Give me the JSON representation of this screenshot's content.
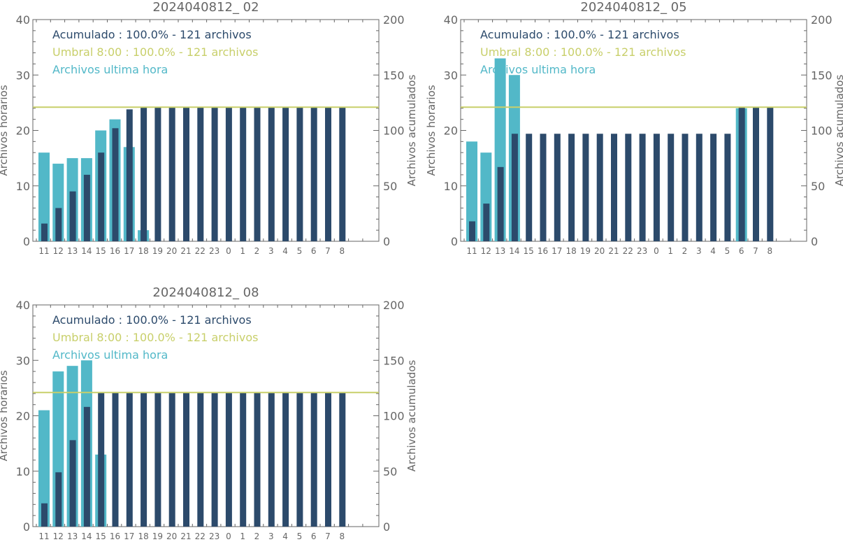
{
  "colors": {
    "hourly": "#52b8c8",
    "cumulative": "#2c4a6b",
    "threshold": "#c8cf6a",
    "axis": "#666666",
    "text": "#666666"
  },
  "chart_data": [
    {
      "type": "bar",
      "title": "2024040812_ 02",
      "ylabel": "Archivos horarios",
      "ylabel_right": "Archivos acumulados",
      "ylim": [
        0,
        40
      ],
      "ylim_right": [
        0,
        200
      ],
      "yticks": [
        "0",
        "10",
        "20",
        "30",
        "40"
      ],
      "yticks_right": [
        "0",
        "50",
        "100",
        "150",
        "200"
      ],
      "categories": [
        "11",
        "12",
        "13",
        "14",
        "15",
        "16",
        "17",
        "18",
        "19",
        "20",
        "21",
        "22",
        "23",
        "0",
        "1",
        "2",
        "3",
        "4",
        "5",
        "6",
        "7",
        "8"
      ],
      "legend": [
        "Acumulado : 100.0% - 121 archivos",
        "Umbral 8:00 : 100.0% - 121 archivos",
        "Archivos ultima hora"
      ],
      "threshold_right": 121,
      "series": [
        {
          "name": "Archivos ultima hora",
          "values": [
            16,
            14,
            15,
            15,
            20,
            22,
            17,
            2,
            0,
            0,
            0,
            0,
            0,
            0,
            0,
            0,
            0,
            0,
            0,
            0,
            0,
            0
          ]
        },
        {
          "name": "Acumulado",
          "values": [
            16,
            30,
            45,
            60,
            80,
            102,
            119,
            121,
            121,
            121,
            121,
            121,
            121,
            121,
            121,
            121,
            121,
            121,
            121,
            121,
            121,
            121
          ]
        }
      ]
    },
    {
      "type": "bar",
      "title": "2024040812_ 05",
      "ylabel": "Archivos horarios",
      "ylabel_right": "Archivos acumulados",
      "ylim": [
        0,
        40
      ],
      "ylim_right": [
        0,
        200
      ],
      "yticks": [
        "0",
        "10",
        "20",
        "30",
        "40"
      ],
      "yticks_right": [
        "0",
        "50",
        "100",
        "150",
        "200"
      ],
      "categories": [
        "11",
        "12",
        "13",
        "14",
        "15",
        "16",
        "17",
        "18",
        "19",
        "20",
        "21",
        "22",
        "23",
        "0",
        "1",
        "2",
        "3",
        "4",
        "5",
        "6",
        "7",
        "8"
      ],
      "legend": [
        "Acumulado : 100.0% - 121 archivos",
        "Umbral 8:00 : 100.0% - 121 archivos",
        "Archivos ultima hora"
      ],
      "threshold_right": 121,
      "series": [
        {
          "name": "Archivos ultima hora",
          "values": [
            18,
            16,
            33,
            30,
            0,
            0,
            0,
            0,
            0,
            0,
            0,
            0,
            0,
            0,
            0,
            0,
            0,
            0,
            0,
            24,
            0,
            0
          ]
        },
        {
          "name": "Acumulado",
          "values": [
            18,
            34,
            67,
            97,
            97,
            97,
            97,
            97,
            97,
            97,
            97,
            97,
            97,
            97,
            97,
            97,
            97,
            97,
            97,
            121,
            121,
            121
          ]
        }
      ]
    },
    {
      "type": "bar",
      "title": "2024040812_ 08",
      "ylabel": "Archivos horarios",
      "ylabel_right": "Archivos acumulados",
      "ylim": [
        0,
        40
      ],
      "ylim_right": [
        0,
        200
      ],
      "yticks": [
        "0",
        "10",
        "20",
        "30",
        "40"
      ],
      "yticks_right": [
        "0",
        "50",
        "100",
        "150",
        "200"
      ],
      "categories": [
        "11",
        "12",
        "13",
        "14",
        "15",
        "16",
        "17",
        "18",
        "19",
        "20",
        "21",
        "22",
        "23",
        "0",
        "1",
        "2",
        "3",
        "4",
        "5",
        "6",
        "7",
        "8"
      ],
      "legend": [
        "Acumulado : 100.0% - 121 archivos",
        "Umbral 8:00 : 100.0% - 121 archivos",
        "Archivos ultima hora"
      ],
      "threshold_right": 121,
      "series": [
        {
          "name": "Archivos ultima hora",
          "values": [
            21,
            28,
            29,
            30,
            13,
            0,
            0,
            0,
            0,
            0,
            0,
            0,
            0,
            0,
            0,
            0,
            0,
            0,
            0,
            0,
            0,
            0
          ]
        },
        {
          "name": "Acumulado",
          "values": [
            21,
            49,
            78,
            108,
            121,
            121,
            121,
            121,
            121,
            121,
            121,
            121,
            121,
            121,
            121,
            121,
            121,
            121,
            121,
            121,
            121,
            121
          ]
        }
      ]
    }
  ]
}
